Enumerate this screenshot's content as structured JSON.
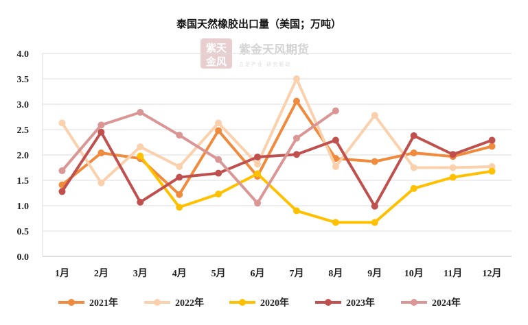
{
  "chart_data": {
    "type": "line",
    "title": "泰国天然橡胶出口量（美国；万吨）",
    "categories": [
      "1月",
      "2月",
      "3月",
      "4月",
      "5月",
      "6月",
      "7月",
      "8月",
      "9月",
      "10月",
      "11月",
      "12月"
    ],
    "y_ticks": [
      "0.0",
      "0.5",
      "1.0",
      "1.5",
      "2.0",
      "2.5",
      "3.0",
      "3.5",
      "4.0"
    ],
    "ylim": [
      0,
      4
    ],
    "grid": "horizontal",
    "legend_position": "bottom",
    "series": [
      {
        "name": "2021年",
        "color": "#f08a3c",
        "values": [
          1.41,
          2.04,
          1.93,
          1.22,
          2.48,
          1.58,
          3.06,
          1.93,
          1.87,
          2.04,
          1.97,
          2.17
        ]
      },
      {
        "name": "2022年",
        "color": "#fbd0ad",
        "values": [
          2.63,
          1.45,
          2.16,
          1.77,
          2.63,
          1.82,
          3.5,
          1.77,
          2.78,
          1.75,
          1.75,
          1.77
        ]
      },
      {
        "name": "2020年",
        "color": "#ffc000",
        "values": [
          null,
          null,
          1.98,
          0.97,
          1.23,
          1.63,
          0.9,
          0.67,
          0.67,
          1.34,
          1.56,
          1.68
        ]
      },
      {
        "name": "2023年",
        "color": "#c0504d",
        "values": [
          1.28,
          2.45,
          1.07,
          1.56,
          1.64,
          1.96,
          2.01,
          2.29,
          0.99,
          2.38,
          2.01,
          2.29
        ]
      },
      {
        "name": "2024年",
        "color": "#d99694",
        "values": [
          1.69,
          2.59,
          2.84,
          2.39,
          1.91,
          1.05,
          2.33,
          2.87,
          null,
          null,
          null,
          null
        ]
      }
    ]
  },
  "watermark": {
    "name": "紫金天风期货",
    "slogan": "立足产业 研究驱动",
    "logo_top": "紫天",
    "logo_bottom": "金风"
  }
}
